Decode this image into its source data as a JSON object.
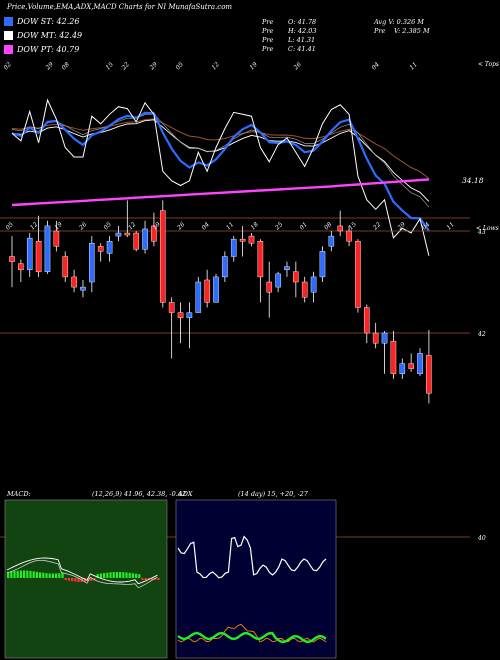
{
  "header": {
    "title": "Price,Volume,EMA,ADX,MACD Charts for NI MunafaSutra.com"
  },
  "legend": [
    {
      "label": "DOW ST: 42.26",
      "color": "#2d6cff"
    },
    {
      "label": "DOW MT: 42.49",
      "color": "#ffffff"
    },
    {
      "label": "DOW PT: 40.79",
      "color": "#ff44ff"
    }
  ],
  "ohlc": {
    "open_label": "Pre",
    "open": "O: 41.78",
    "high_label": "Pre",
    "high": "H: 42.03",
    "low_label": "Pre",
    "low": "L: 41.31",
    "close_label": "Pre",
    "close": "C: 41.41",
    "avgv": "Avg V: 0.326 M",
    "vol_label": "Pre",
    "vol": "V: 2.385 M"
  },
  "upper_panel": {
    "right_label": "< Tops",
    "price_tag": "34.18",
    "top_tick_labels": [
      "02",
      "29",
      "08",
      "15",
      "22",
      "29",
      "05",
      "12",
      "19",
      "26",
      "04",
      "11"
    ],
    "colors": {
      "price": "#ffffff",
      "ema_short": "#2d6cff",
      "ema_mid": "#ffffff",
      "ema_long": "#ff44ff",
      "ema_brown": "#a0522d"
    }
  },
  "candle_panel": {
    "right_label": "< Lows",
    "top_tick_labels": [
      "05",
      "12",
      "19",
      "26",
      "05",
      "12",
      "19",
      "26",
      "04",
      "11",
      "18",
      "25",
      "01",
      "08",
      "15",
      "22",
      "29",
      "04",
      "11"
    ],
    "level_labels": [
      "43",
      "42",
      "40"
    ],
    "colors": {
      "up": "#2d6cff",
      "down": "#ff2222",
      "level": "#a0522d"
    }
  },
  "macd": {
    "label": "MACD:",
    "params": "(12,26,9) 41.96, 42.38, -0.42",
    "colors": {
      "bg": "#114411",
      "hist_pos": "#22ee22",
      "hist_neg": "#ff3333"
    }
  },
  "adx": {
    "label": "ADX",
    "params": "(14 day) 15, +20, -27",
    "colors": {
      "bg": "#000033",
      "adx": "#ffffff",
      "plus": "#22ee22",
      "minus": "#ff8800"
    }
  },
  "chart_data": {
    "type": "candlestick",
    "title": "Price,Volume,EMA,ADX,MACD Charts for NI MunafaSutra.com",
    "candles": [
      {
        "o": 42.75,
        "h": 42.95,
        "l": 42.45,
        "c": 42.7
      },
      {
        "o": 42.68,
        "h": 42.72,
        "l": 42.5,
        "c": 42.62
      },
      {
        "o": 42.62,
        "h": 42.98,
        "l": 42.55,
        "c": 42.93
      },
      {
        "o": 42.9,
        "h": 43.15,
        "l": 42.55,
        "c": 42.6
      },
      {
        "o": 42.6,
        "h": 43.1,
        "l": 42.58,
        "c": 43.05
      },
      {
        "o": 43.0,
        "h": 43.1,
        "l": 42.8,
        "c": 42.85
      },
      {
        "o": 42.75,
        "h": 42.8,
        "l": 42.5,
        "c": 42.55
      },
      {
        "o": 42.55,
        "h": 42.62,
        "l": 42.4,
        "c": 42.45
      },
      {
        "o": 42.42,
        "h": 42.52,
        "l": 42.35,
        "c": 42.45
      },
      {
        "o": 42.5,
        "h": 42.95,
        "l": 42.4,
        "c": 42.88
      },
      {
        "o": 42.85,
        "h": 42.88,
        "l": 42.7,
        "c": 42.8
      },
      {
        "o": 42.78,
        "h": 42.95,
        "l": 42.7,
        "c": 42.9
      },
      {
        "o": 42.95,
        "h": 43.05,
        "l": 42.9,
        "c": 42.98
      },
      {
        "o": 42.98,
        "h": 43.3,
        "l": 42.94,
        "c": 42.96
      },
      {
        "o": 42.98,
        "h": 43.0,
        "l": 42.8,
        "c": 42.82
      },
      {
        "o": 42.82,
        "h": 43.1,
        "l": 42.78,
        "c": 43.02
      },
      {
        "o": 43.05,
        "h": 43.18,
        "l": 42.85,
        "c": 42.9
      },
      {
        "o": 43.2,
        "h": 43.3,
        "l": 42.25,
        "c": 42.3
      },
      {
        "o": 42.3,
        "h": 42.35,
        "l": 41.75,
        "c": 42.2
      },
      {
        "o": 42.2,
        "h": 42.3,
        "l": 41.9,
        "c": 42.15
      },
      {
        "o": 42.15,
        "h": 42.3,
        "l": 41.85,
        "c": 42.2
      },
      {
        "o": 42.2,
        "h": 42.55,
        "l": 42.2,
        "c": 42.5
      },
      {
        "o": 42.52,
        "h": 42.62,
        "l": 42.25,
        "c": 42.3
      },
      {
        "o": 42.3,
        "h": 42.58,
        "l": 42.3,
        "c": 42.55
      },
      {
        "o": 42.55,
        "h": 42.8,
        "l": 42.5,
        "c": 42.75
      },
      {
        "o": 42.75,
        "h": 42.95,
        "l": 42.7,
        "c": 42.92
      },
      {
        "o": 42.92,
        "h": 43.05,
        "l": 42.75,
        "c": 42.9
      },
      {
        "o": 42.95,
        "h": 42.98,
        "l": 42.85,
        "c": 42.88
      },
      {
        "o": 42.9,
        "h": 42.92,
        "l": 42.3,
        "c": 42.55
      },
      {
        "o": 42.5,
        "h": 42.7,
        "l": 42.15,
        "c": 42.4
      },
      {
        "o": 42.45,
        "h": 42.6,
        "l": 42.4,
        "c": 42.58
      },
      {
        "o": 42.62,
        "h": 42.7,
        "l": 42.55,
        "c": 42.65
      },
      {
        "o": 42.6,
        "h": 42.7,
        "l": 42.35,
        "c": 42.5
      },
      {
        "o": 42.5,
        "h": 42.55,
        "l": 42.3,
        "c": 42.35
      },
      {
        "o": 42.4,
        "h": 42.6,
        "l": 42.3,
        "c": 42.55
      },
      {
        "o": 42.55,
        "h": 42.85,
        "l": 42.5,
        "c": 42.8
      },
      {
        "o": 42.85,
        "h": 43.0,
        "l": 42.8,
        "c": 42.95
      },
      {
        "o": 43.05,
        "h": 43.2,
        "l": 42.95,
        "c": 43.0
      },
      {
        "o": 43.0,
        "h": 43.05,
        "l": 42.85,
        "c": 42.9
      },
      {
        "o": 42.9,
        "h": 42.92,
        "l": 42.2,
        "c": 42.25
      },
      {
        "o": 42.25,
        "h": 42.28,
        "l": 41.9,
        "c": 42.0
      },
      {
        "o": 42.0,
        "h": 42.1,
        "l": 41.85,
        "c": 41.9
      },
      {
        "o": 41.9,
        "h": 42.02,
        "l": 41.6,
        "c": 42.0
      },
      {
        "o": 41.92,
        "h": 42.02,
        "l": 41.55,
        "c": 41.6
      },
      {
        "o": 41.6,
        "h": 41.75,
        "l": 41.55,
        "c": 41.7
      },
      {
        "o": 41.7,
        "h": 41.8,
        "l": 41.62,
        "c": 41.65
      },
      {
        "o": 41.6,
        "h": 41.85,
        "l": 41.58,
        "c": 41.8
      },
      {
        "o": 41.78,
        "h": 42.03,
        "l": 41.31,
        "c": 41.41
      }
    ]
  }
}
